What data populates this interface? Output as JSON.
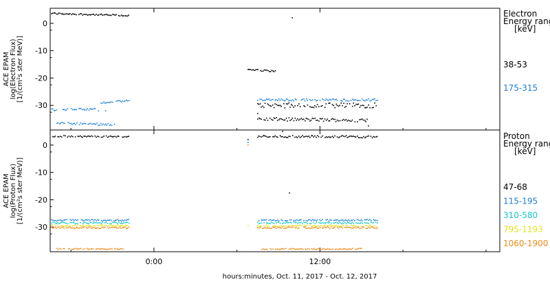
{
  "xlabel": "hours:minutes, Oct. 11, 2017 - Oct. 12, 2017",
  "x_tick_labels": [
    "0:00",
    "12:00"
  ],
  "chart_data": [
    {
      "type": "scatter",
      "ylabel_lines": [
        "ACE EPAM",
        "log(Electron Flux)",
        "[1/(cm²s ster MeV)]"
      ],
      "legend_title_lines": [
        "Electron",
        "Energy range",
        "[keV]"
      ],
      "xlim_hours": [
        -7.5,
        25
      ],
      "x_ticks_hours": [
        0,
        12
      ],
      "ylim": [
        -39,
        5.5
      ],
      "y_ticks": [
        0,
        -10,
        -20,
        -30
      ],
      "series": [
        {
          "name": "38-53",
          "color": "#000000",
          "segments": [
            {
              "x0": -7.4,
              "x1": -1.8,
              "y0": 3.6,
              "y1": 2.8,
              "jitter": 0.3
            },
            {
              "x0": 6.8,
              "x1": 8.8,
              "y0": -17.0,
              "y1": -17.5,
              "jitter": 0.3
            },
            {
              "x0": 7.5,
              "x1": 16.2,
              "y0": -30.0,
              "y1": -30.0,
              "jitter": 0.9
            },
            {
              "x0": 7.5,
              "x1": 15.5,
              "y0": -35.0,
              "y1": -35.5,
              "jitter": 0.6
            }
          ],
          "points": [
            [
              10.0,
              2.0
            ],
            [
              7.5,
              -33.0
            ],
            [
              15.5,
              -37.5
            ]
          ]
        },
        {
          "name": "175-315",
          "color": "#1e7fd8",
          "segments": [
            {
              "x0": -7.4,
              "x1": -4.2,
              "y0": -31.5,
              "y1": -31.5,
              "jitter": 0.4
            },
            {
              "x0": -3.8,
              "x1": -1.8,
              "y0": -29.0,
              "y1": -28.3,
              "jitter": 0.3
            },
            {
              "x0": -7.0,
              "x1": -2.8,
              "y0": -36.5,
              "y1": -37.0,
              "jitter": 0.4
            },
            {
              "x0": 7.5,
              "x1": 16.2,
              "y0": -28.0,
              "y1": -28.0,
              "jitter": 0.4
            }
          ],
          "points": [
            [
              -4.0,
              -32.0
            ],
            [
              -3.5,
              -32.0
            ]
          ]
        }
      ]
    },
    {
      "type": "scatter",
      "ylabel_lines": [
        "ACE EPAM",
        "log(Proton Flux)",
        "[1/(cm²s ster MeV)]"
      ],
      "legend_title_lines": [
        "Proton",
        "Energy range",
        "[keV]"
      ],
      "xlim_hours": [
        -7.5,
        25
      ],
      "x_ticks_hours": [
        0,
        12
      ],
      "ylim": [
        -39,
        5.5
      ],
      "y_ticks": [
        0,
        -10,
        -20,
        -30
      ],
      "series": [
        {
          "name": "47-68",
          "color": "#000000",
          "segments": [
            {
              "x0": -7.4,
              "x1": -1.8,
              "y0": 3.2,
              "y1": 3.0,
              "jitter": 0.3
            },
            {
              "x0": 7.5,
              "x1": 16.2,
              "y0": 3.2,
              "y1": 3.0,
              "jitter": 0.4
            }
          ],
          "points": [
            [
              9.3,
              5.0
            ],
            [
              9.8,
              -17.5
            ],
            [
              6.8,
              2.0
            ]
          ]
        },
        {
          "name": "115-195",
          "color": "#1e7fd8",
          "segments": [
            {
              "x0": -7.4,
              "x1": -1.8,
              "y0": -27.5,
              "y1": -27.5,
              "jitter": 0.3
            },
            {
              "x0": 7.5,
              "x1": 16.2,
              "y0": -27.5,
              "y1": -27.5,
              "jitter": 0.3
            }
          ],
          "points": [
            [
              6.8,
              1.0
            ]
          ]
        },
        {
          "name": "310-580",
          "color": "#17c8cc",
          "segments": [
            {
              "x0": -7.4,
              "x1": -1.8,
              "y0": -28.5,
              "y1": -28.5,
              "jitter": 0.3
            },
            {
              "x0": 7.5,
              "x1": 16.2,
              "y0": -28.5,
              "y1": -28.5,
              "jitter": 0.3
            }
          ],
          "points": []
        },
        {
          "name": "795-1193",
          "color": "#e2e21a",
          "segments": [
            {
              "x0": -7.4,
              "x1": -1.8,
              "y0": -29.5,
              "y1": -29.5,
              "jitter": 0.3
            },
            {
              "x0": 7.5,
              "x1": 16.2,
              "y0": -29.5,
              "y1": -29.5,
              "jitter": 0.3
            }
          ],
          "points": [
            [
              6.8,
              -29.5
            ]
          ]
        },
        {
          "name": "1060-1900",
          "color": "#f08a1a",
          "segments": [
            {
              "x0": -7.4,
              "x1": -1.8,
              "y0": -30.2,
              "y1": -30.2,
              "jitter": 0.3
            },
            {
              "x0": 7.5,
              "x1": 16.2,
              "y0": -30.2,
              "y1": -30.2,
              "jitter": 0.3
            },
            {
              "x0": -7.0,
              "x1": -2.2,
              "y0": -38.0,
              "y1": -38.0,
              "jitter": 0.2
            },
            {
              "x0": 7.8,
              "x1": 15.0,
              "y0": -38.0,
              "y1": -38.0,
              "jitter": 0.2
            }
          ],
          "points": [
            [
              6.8,
              0.0
            ]
          ]
        }
      ]
    }
  ]
}
